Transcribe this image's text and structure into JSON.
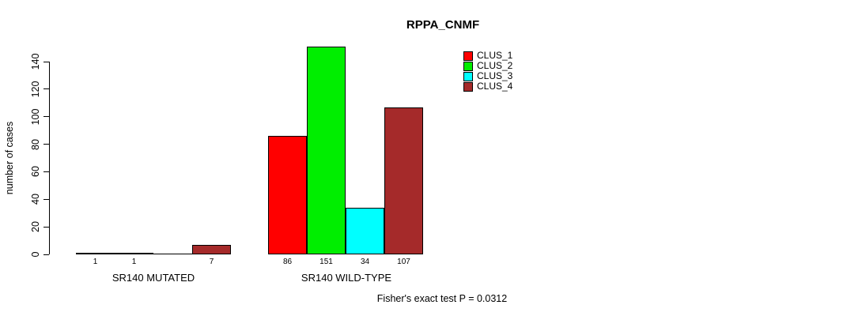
{
  "title": "RPPA_CNMF",
  "footer": "Fisher's exact test P = 0.0312",
  "chart_data": {
    "type": "bar",
    "title": "RPPA_CNMF",
    "xlabel": "",
    "ylabel": "number of cases",
    "categories": [
      "SR140 MUTATED",
      "SR140 WILD-TYPE"
    ],
    "series": [
      {
        "name": "CLUS_1",
        "color": "#ff0000",
        "values": [
          1,
          86
        ]
      },
      {
        "name": "CLUS_2",
        "color": "#00ee00",
        "values": [
          1,
          151
        ]
      },
      {
        "name": "CLUS_3",
        "color": "#00ffff",
        "values": [
          0,
          34
        ]
      },
      {
        "name": "CLUS_4",
        "color": "#a52a2a",
        "values": [
          7,
          107
        ]
      }
    ],
    "bar_value_labels": [
      [
        "1",
        "1",
        "",
        "7"
      ],
      [
        "86",
        "151",
        "34",
        "107"
      ]
    ],
    "yticks": [
      0,
      20,
      40,
      60,
      80,
      100,
      120,
      140
    ],
    "ylim": [
      0,
      151
    ],
    "grid": false,
    "legend": {
      "position": "top-right",
      "entries": [
        "CLUS_1",
        "CLUS_2",
        "CLUS_3",
        "CLUS_4"
      ]
    },
    "annotation": "Fisher's exact test P = 0.0312"
  }
}
